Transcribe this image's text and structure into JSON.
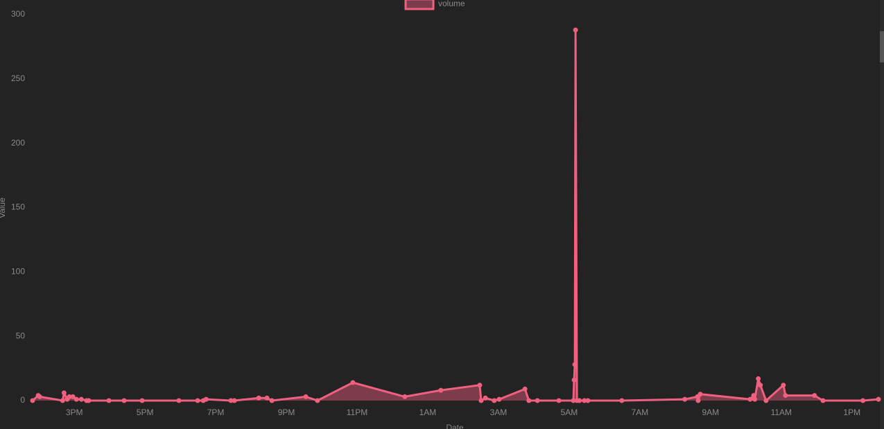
{
  "chart_data": {
    "type": "line",
    "x_label": "Date",
    "y_label": "Value",
    "x": [
      13.82,
      13.98,
      14.02,
      14.67,
      14.71,
      14.8,
      14.86,
      14.96,
      15.06,
      15.2,
      15.35,
      15.41,
      15.98,
      16.41,
      16.92,
      17.96,
      18.49,
      18.65,
      18.73,
      19.43,
      19.53,
      20.22,
      20.45,
      20.59,
      21.55,
      21.88,
      22.88,
      24.35,
      25.37,
      26.47,
      26.51,
      26.63,
      26.88,
      27.02,
      27.75,
      27.86,
      28.1,
      28.71,
      29.12,
      29.14,
      29.16,
      29.18,
      29.22,
      29.29,
      29.43,
      29.53,
      30.49,
      32.27,
      32.63,
      32.65,
      32.71,
      34.12,
      34.22,
      34.25,
      34.35,
      34.41,
      34.57,
      35.06,
      35.12,
      35.94,
      36.18,
      37.31,
      37.75
    ],
    "series": [
      {
        "name": "volume",
        "color": "#f0607f",
        "fill": "#7c3c4b",
        "values": [
          0,
          4,
          3,
          0,
          6,
          1,
          3,
          3,
          1,
          1,
          0,
          0,
          0,
          0,
          0,
          0,
          0,
          0,
          1,
          0,
          0,
          2,
          2,
          0,
          3,
          0,
          14,
          3,
          8,
          12,
          0,
          2,
          0,
          1,
          9,
          0,
          0,
          0,
          0,
          16,
          28,
          288,
          0,
          0,
          0,
          0,
          0,
          1,
          3,
          0,
          5,
          1,
          4,
          1,
          17,
          12,
          0,
          12,
          4,
          4,
          0,
          0,
          1
        ]
      }
    ],
    "xlim": [
      13.82,
      37.75
    ],
    "xticks": [
      {
        "value": 15,
        "label": "3PM"
      },
      {
        "value": 17,
        "label": "5PM"
      },
      {
        "value": 19,
        "label": "7PM"
      },
      {
        "value": 21,
        "label": "9PM"
      },
      {
        "value": 23,
        "label": "11PM"
      },
      {
        "value": 25,
        "label": "1AM"
      },
      {
        "value": 27,
        "label": "3AM"
      },
      {
        "value": 29,
        "label": "5AM"
      },
      {
        "value": 31,
        "label": "7AM"
      },
      {
        "value": 33,
        "label": "9AM"
      },
      {
        "value": 35,
        "label": "11AM"
      },
      {
        "value": 37,
        "label": "1PM"
      }
    ],
    "ylim": [
      0,
      300
    ],
    "yticks": [
      0,
      50,
      100,
      150,
      200,
      250,
      300
    ],
    "grid": false,
    "legend": "top"
  }
}
